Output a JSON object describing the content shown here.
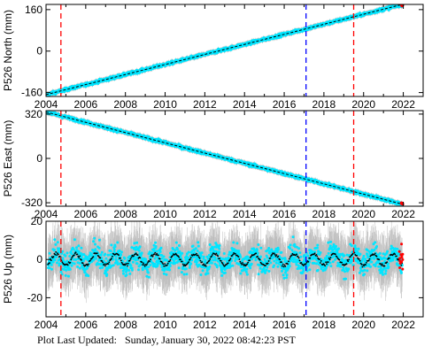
{
  "chart_data": [
    {
      "type": "scatter",
      "ylabel": "P526 North (mm)",
      "xlim": [
        2004,
        2023
      ],
      "ylim": [
        -175,
        180
      ],
      "x_ticks": [
        2004,
        2006,
        2008,
        2010,
        2012,
        2014,
        2016,
        2018,
        2020,
        2022
      ],
      "y_ticks": [
        -160,
        0,
        160
      ],
      "trend": {
        "x": [
          2004.0,
          2021.95
        ],
        "y": [
          -168,
          180
        ]
      },
      "vlines": [
        {
          "x": 2004.75,
          "color": "#ff0000"
        },
        {
          "x": 2017.1,
          "color": "#0000ff"
        },
        {
          "x": 2019.5,
          "color": "#ff0000"
        }
      ],
      "grid": false,
      "legend": "none"
    },
    {
      "type": "scatter",
      "ylabel": "P526 East (mm)",
      "xlim": [
        2004,
        2023
      ],
      "ylim": [
        -345,
        345
      ],
      "x_ticks": [
        2004,
        2006,
        2008,
        2010,
        2012,
        2014,
        2016,
        2018,
        2020,
        2022
      ],
      "y_ticks": [
        -320,
        0,
        320
      ],
      "trend": {
        "x": [
          2004.0,
          2021.95
        ],
        "y": [
          335,
          -330
        ]
      },
      "vlines": [
        {
          "x": 2004.75,
          "color": "#ff0000"
        },
        {
          "x": 2017.1,
          "color": "#0000ff"
        },
        {
          "x": 2019.5,
          "color": "#ff0000"
        }
      ],
      "grid": false,
      "legend": "none"
    },
    {
      "type": "scatter",
      "ylabel": "P526 Up (mm)",
      "xlim": [
        2004,
        2023
      ],
      "ylim": [
        -30,
        20
      ],
      "x_ticks": [
        2004,
        2006,
        2008,
        2010,
        2012,
        2014,
        2016,
        2018,
        2020,
        2022
      ],
      "y_ticks": [
        -20,
        0,
        20
      ],
      "seasonal": {
        "x_start": 2004.1,
        "x_end": 2021.95,
        "amplitude_mm": 3,
        "period_years": 1,
        "scatter_spread_mm": 8,
        "error_bar_mm": 12
      },
      "vlines": [
        {
          "x": 2004.75,
          "color": "#ff0000"
        },
        {
          "x": 2017.1,
          "color": "#0000ff"
        },
        {
          "x": 2019.5,
          "color": "#ff0000"
        }
      ],
      "grid": false,
      "legend": "none"
    }
  ],
  "colors": {
    "points": "#00e5ff",
    "error_bars": "#bdbdbd",
    "trend_line": "#000000",
    "recent_points": "#ff0000"
  },
  "footer": {
    "label": "Plot Last Updated:",
    "date": "Sunday, January 30, 2022 08:42:23 PST"
  }
}
